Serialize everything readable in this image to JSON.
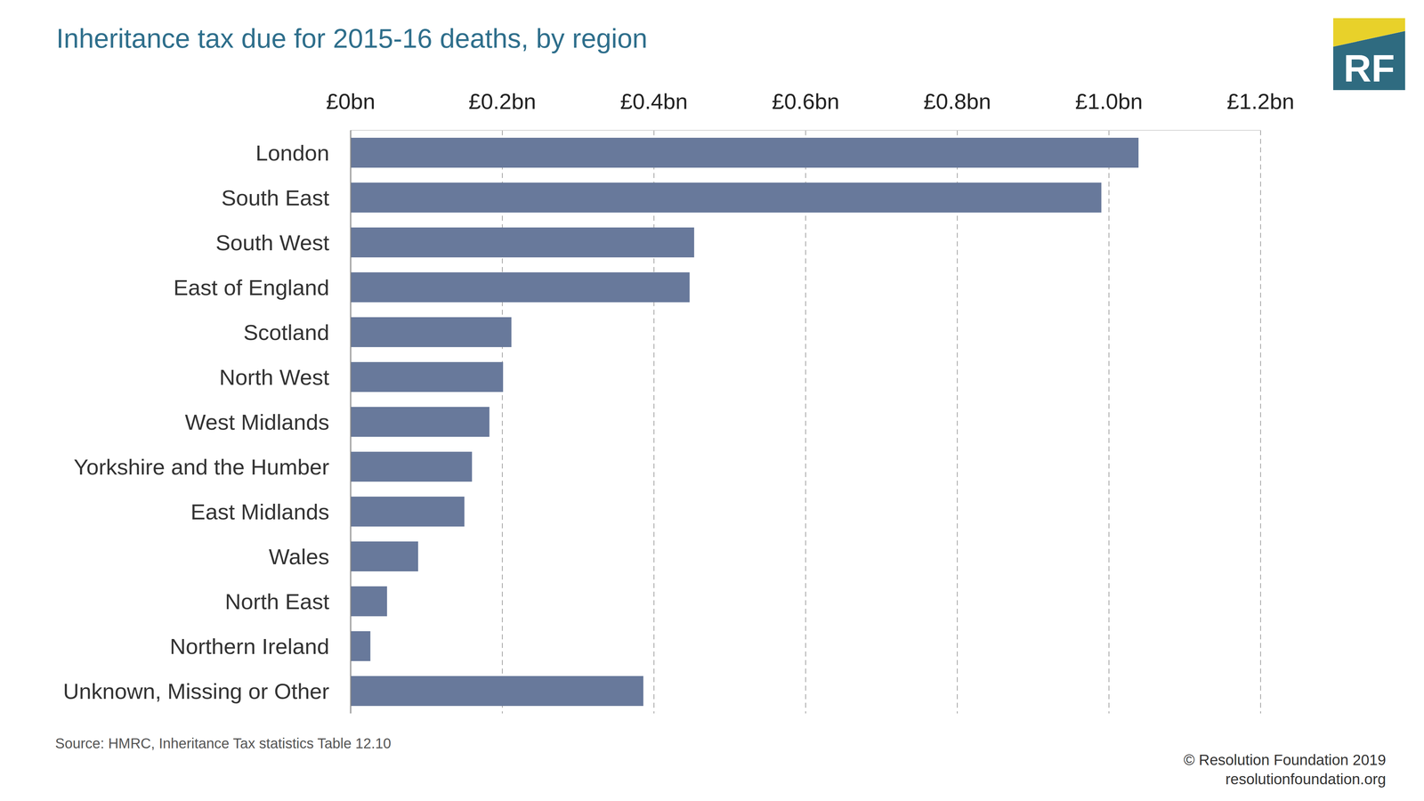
{
  "chart_data": {
    "type": "bar",
    "orientation": "horizontal",
    "title": "Inheritance tax due for 2015-16 deaths, by region",
    "categories": [
      "London",
      "South East",
      "South West",
      "East of England",
      "Scotland",
      "North West",
      "West Midlands",
      "Yorkshire and the Humber",
      "East Midlands",
      "Wales",
      "North East",
      "Northern Ireland",
      "Unknown, Missing or Other"
    ],
    "values": [
      1.039,
      0.99,
      0.453,
      0.447,
      0.212,
      0.201,
      0.183,
      0.16,
      0.15,
      0.089,
      0.048,
      0.026,
      0.386
    ],
    "color": "#68799b",
    "xlim": [
      0,
      1.2
    ],
    "xticks": [
      {
        "value": 0,
        "label": "£0bn"
      },
      {
        "value": 0.2,
        "label": "£0.2bn"
      },
      {
        "value": 0.4,
        "label": "£0.4bn"
      },
      {
        "value": 0.6,
        "label": "£0.6bn"
      },
      {
        "value": 0.8,
        "label": "£0.8bn"
      },
      {
        "value": 1.0,
        "label": "£1.0bn"
      },
      {
        "value": 1.2,
        "label": "£1.2bn"
      }
    ],
    "grid": true,
    "source": "Source: HMRC, Inheritance Tax statistics Table 12.10",
    "footer": [
      "© Resolution Foundation 2019",
      "resolutionfoundation.org"
    ],
    "logo": "RF"
  }
}
